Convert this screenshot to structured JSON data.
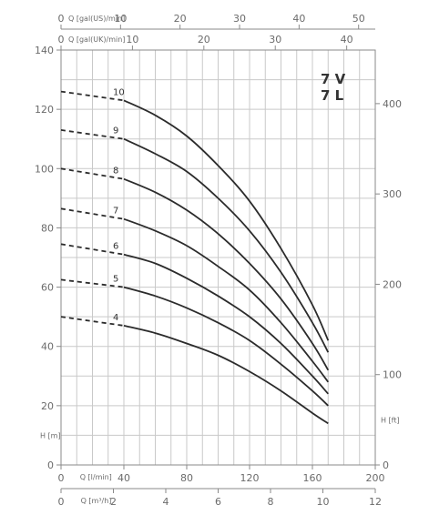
{
  "chart_data": {
    "type": "line",
    "model_label": [
      "7 V",
      "7 L"
    ],
    "axes": {
      "left": {
        "title": "H [m]",
        "range": [
          0,
          140
        ],
        "ticks": [
          0,
          20,
          40,
          60,
          80,
          100,
          120,
          140
        ]
      },
      "right": {
        "title": "H [ft]",
        "range": [
          0,
          459.3
        ],
        "ticks": [
          0,
          100,
          200,
          300,
          400
        ]
      },
      "bottom_lmin": {
        "title": "Q [l/min]",
        "range": [
          0,
          200
        ],
        "ticks": [
          0,
          40,
          80,
          120,
          160,
          200
        ]
      },
      "bottom_m3h": {
        "title": "Q [m³/h]",
        "range": [
          0,
          12
        ],
        "ticks": [
          0,
          2,
          4,
          6,
          8,
          10,
          12
        ]
      },
      "top_galuk": {
        "title": "Q [gal(UK)/min]",
        "range": [
          0,
          44
        ],
        "ticks": [
          0,
          10,
          20,
          30,
          40
        ]
      },
      "top_galus": {
        "title": "Q [gal(US)/min]",
        "range": [
          0,
          52.8
        ],
        "ticks": [
          0,
          10,
          20,
          30,
          40,
          50
        ]
      }
    },
    "grid": true,
    "series": [
      {
        "name": "10",
        "dashed_until": 40,
        "points": [
          [
            0,
            126
          ],
          [
            40,
            123
          ],
          [
            60,
            118
          ],
          [
            80,
            111
          ],
          [
            100,
            101
          ],
          [
            120,
            89
          ],
          [
            140,
            73
          ],
          [
            160,
            54
          ],
          [
            170,
            42
          ]
        ]
      },
      {
        "name": "9",
        "dashed_until": 40,
        "points": [
          [
            0,
            113
          ],
          [
            40,
            110
          ],
          [
            60,
            105
          ],
          [
            80,
            99
          ],
          [
            100,
            90
          ],
          [
            120,
            79
          ],
          [
            140,
            65
          ],
          [
            160,
            48
          ],
          [
            170,
            38
          ]
        ]
      },
      {
        "name": "8",
        "dashed_until": 40,
        "points": [
          [
            0,
            100
          ],
          [
            40,
            96.5
          ],
          [
            60,
            92
          ],
          [
            80,
            86
          ],
          [
            100,
            78
          ],
          [
            120,
            68
          ],
          [
            140,
            56
          ],
          [
            160,
            41
          ],
          [
            170,
            32
          ]
        ]
      },
      {
        "name": "7",
        "dashed_until": 40,
        "points": [
          [
            0,
            86.5
          ],
          [
            40,
            83
          ],
          [
            60,
            79
          ],
          [
            80,
            74
          ],
          [
            100,
            67
          ],
          [
            120,
            59
          ],
          [
            140,
            48
          ],
          [
            160,
            35
          ],
          [
            170,
            28
          ]
        ]
      },
      {
        "name": "6",
        "dashed_until": 40,
        "points": [
          [
            0,
            74.5
          ],
          [
            40,
            71
          ],
          [
            60,
            68
          ],
          [
            80,
            63
          ],
          [
            100,
            57
          ],
          [
            120,
            50
          ],
          [
            140,
            41
          ],
          [
            160,
            30
          ],
          [
            170,
            24
          ]
        ]
      },
      {
        "name": "5",
        "dashed_until": 40,
        "points": [
          [
            0,
            62.5
          ],
          [
            40,
            60
          ],
          [
            60,
            57
          ],
          [
            80,
            53
          ],
          [
            100,
            48
          ],
          [
            120,
            42
          ],
          [
            140,
            34
          ],
          [
            160,
            25
          ],
          [
            170,
            20
          ]
        ]
      },
      {
        "name": "4",
        "dashed_until": 40,
        "points": [
          [
            0,
            50
          ],
          [
            40,
            47
          ],
          [
            60,
            44.5
          ],
          [
            80,
            41
          ],
          [
            100,
            37
          ],
          [
            120,
            31.5
          ],
          [
            140,
            25
          ],
          [
            160,
            17.5
          ],
          [
            170,
            14
          ]
        ]
      }
    ]
  }
}
